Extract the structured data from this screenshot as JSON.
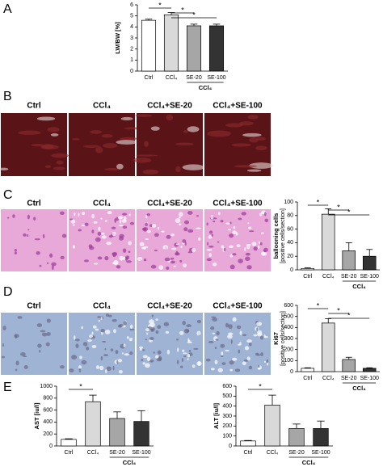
{
  "panel_labels": [
    "A",
    "B",
    "C",
    "D",
    "E"
  ],
  "photo_columns": [
    "Ctrl",
    "CCl₄",
    "CCl₄+SE-20",
    "CCl₄+SE-100"
  ],
  "chart_data": [
    {
      "type": "bar",
      "ylabel": "LW/BW [%]",
      "categories": [
        "Ctrl",
        "CCl₄",
        "SE-20",
        "SE-100"
      ],
      "group_label": "CCl₄",
      "values": [
        4.6,
        5.1,
        4.1,
        4.1
      ],
      "errors": [
        0.1,
        0.2,
        0.15,
        0.15
      ],
      "colors": [
        "#ffffff",
        "#d9d9d9",
        "#a6a6a6",
        "#333333"
      ],
      "ylim": [
        0,
        6
      ],
      "yticks": [
        0,
        1,
        2,
        3,
        4,
        5,
        6
      ],
      "significance": [
        {
          "label": "*",
          "pair": [
            "Ctrl",
            "CCl₄"
          ]
        },
        {
          "label": "*",
          "pair": [
            "CCl₄",
            "SE-20"
          ]
        },
        {
          "label": "*",
          "pair": [
            "CCl₄",
            "SE-100"
          ]
        }
      ]
    },
    {
      "type": "bar",
      "ylabel": "ballooning cells",
      "ylabel2": "[positive cells/section]",
      "categories": [
        "Ctrl",
        "CCl₄",
        "SE-20",
        "SE-100"
      ],
      "group_label": "CCl₄",
      "values": [
        2,
        82,
        28,
        20
      ],
      "errors": [
        1,
        8,
        12,
        10
      ],
      "colors": [
        "#ffffff",
        "#d9d9d9",
        "#a6a6a6",
        "#333333"
      ],
      "ylim": [
        0,
        100
      ],
      "yticks": [
        0,
        20,
        40,
        60,
        80,
        100
      ],
      "significance": [
        {
          "label": "*",
          "pair": [
            "Ctrl",
            "CCl₄"
          ]
        },
        {
          "label": "*",
          "pair": [
            "CCl₄",
            "SE-20"
          ]
        },
        {
          "label": "*",
          "pair": [
            "CCl₄",
            "SE-100"
          ]
        }
      ]
    },
    {
      "type": "bar",
      "ylabel": "Ki67",
      "ylabel2": "[positive cells/section]",
      "categories": [
        "Ctrl",
        "CCl₄",
        "SE-20",
        "SE-100"
      ],
      "group_label": "CCl₄",
      "values": [
        30,
        440,
        110,
        30
      ],
      "errors": [
        5,
        40,
        20,
        5
      ],
      "colors": [
        "#ffffff",
        "#d9d9d9",
        "#a6a6a6",
        "#333333"
      ],
      "ylim": [
        0,
        600
      ],
      "yticks": [
        0,
        100,
        200,
        300,
        400,
        500,
        600
      ],
      "significance": [
        {
          "label": "*",
          "pair": [
            "Ctrl",
            "CCl₄"
          ]
        },
        {
          "label": "*",
          "pair": [
            "CCl₄",
            "SE-20"
          ]
        },
        {
          "label": "*",
          "pair": [
            "CCl₄",
            "SE-100"
          ]
        }
      ]
    },
    {
      "type": "bar",
      "ylabel": "AST [iu/l]",
      "categories": [
        "Ctrl",
        "CCl₄",
        "SE-20",
        "SE-100"
      ],
      "group_label": "CCl₄",
      "values": [
        110,
        740,
        460,
        410
      ],
      "errors": [
        10,
        110,
        110,
        180
      ],
      "colors": [
        "#ffffff",
        "#d9d9d9",
        "#a6a6a6",
        "#333333"
      ],
      "ylim": [
        0,
        1000
      ],
      "yticks": [
        0,
        200,
        400,
        600,
        800,
        1000
      ],
      "significance": [
        {
          "label": "*",
          "pair": [
            "Ctrl",
            "CCl₄"
          ]
        }
      ]
    },
    {
      "type": "bar",
      "ylabel": "ALT [iu/l]",
      "categories": [
        "Ctrl",
        "CCl₄",
        "SE-20",
        "SE-100"
      ],
      "group_label": "CCl₄",
      "values": [
        50,
        410,
        175,
        175
      ],
      "errors": [
        5,
        100,
        45,
        75
      ],
      "colors": [
        "#ffffff",
        "#d9d9d9",
        "#a6a6a6",
        "#333333"
      ],
      "ylim": [
        0,
        600
      ],
      "yticks": [
        0,
        100,
        200,
        300,
        400,
        500,
        600
      ],
      "significance": [
        {
          "label": "*",
          "pair": [
            "Ctrl",
            "CCl₄"
          ]
        }
      ]
    }
  ]
}
